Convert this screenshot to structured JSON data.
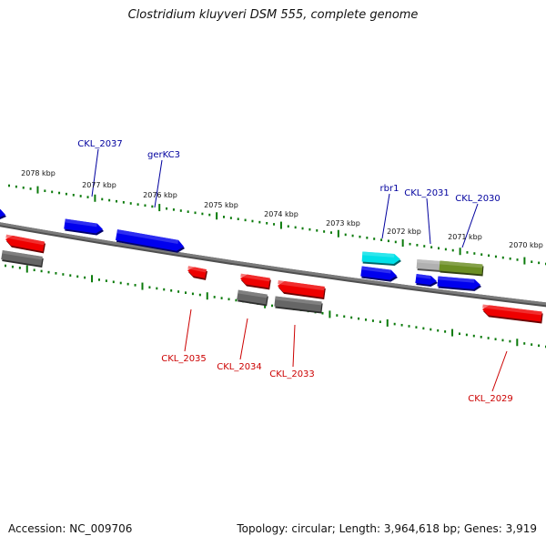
{
  "title": "Clostridium kluyveri DSM 555, complete genome",
  "accession_label": "Accession: NC_009706",
  "summary_label": "Topology: circular; Length: 3,964,618 bp; Genes: 3,919",
  "colors": {
    "backbone": "#7a7a7a",
    "tick": "#0a7a0a",
    "forward_gene": "#0000ee",
    "reverse_gene": "#ee0000",
    "forward_label": "#00009e",
    "reverse_label": "#cc0000",
    "rna": "#00e0e8",
    "pseudo": "#666666",
    "feature_green": "#6b8e23",
    "feature_grey": "#b0b0b0"
  },
  "scale_labels": [
    "2078 kbp",
    "2077 kbp",
    "2076 kbp",
    "2075 kbp",
    "2074 kbp",
    "2073 kbp",
    "2072 kbp",
    "2071 kbp",
    "2070 kbp"
  ],
  "gene_labels": {
    "top": [
      "CKL_2037",
      "gerKC3",
      "rbr1",
      "CKL_2031",
      "CKL_2030"
    ],
    "bottom": [
      "CKL_2035",
      "CKL_2034",
      "CKL_2033",
      "CKL_2029"
    ]
  }
}
